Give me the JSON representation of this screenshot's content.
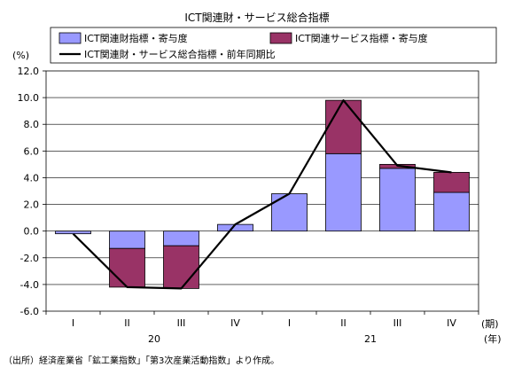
{
  "chart_data": {
    "type": "bar",
    "title": "ICT関連財・サービス総合指標",
    "y_unit_label": "(%)",
    "x_period_unit": "(期)",
    "x_year_unit": "(年)",
    "categories": [
      "I",
      "II",
      "III",
      "IV",
      "I",
      "II",
      "III",
      "IV"
    ],
    "years": [
      {
        "label": "20",
        "span": [
          0,
          3
        ]
      },
      {
        "label": "21",
        "span": [
          4,
          7
        ]
      }
    ],
    "ylim": [
      -6.0,
      12.0
    ],
    "yticks": [
      -6.0,
      -4.0,
      -2.0,
      0.0,
      2.0,
      4.0,
      6.0,
      8.0,
      10.0,
      12.0
    ],
    "ytick_labels": [
      "-6.0",
      "-4.0",
      "-2.0",
      "0.0",
      "2.0",
      "4.0",
      "6.0",
      "8.0",
      "10.0",
      "12.0"
    ],
    "stacked": true,
    "grid": "horizontal",
    "legend_placement": "top",
    "series": [
      {
        "name": "ICT関連財指標・寄与度",
        "kind": "bar",
        "color": "#9999ff",
        "values": [
          -0.2,
          -1.3,
          -1.1,
          0.5,
          2.8,
          5.8,
          4.7,
          2.9
        ]
      },
      {
        "name": "ICT関連サービス指標・寄与度",
        "kind": "bar",
        "color": "#993366",
        "values": [
          0.0,
          -2.9,
          -3.2,
          0.0,
          0.0,
          4.0,
          0.3,
          1.5
        ]
      },
      {
        "name": "ICT関連財・サービス総合指標・前年同期比",
        "kind": "line",
        "color": "#000000",
        "values": [
          -0.2,
          -4.2,
          -4.3,
          0.5,
          2.8,
          9.8,
          4.9,
          4.4
        ]
      }
    ]
  },
  "source_note": "（出所）経済産業省「鉱工業指数」「第3次産業活動指数」より作成。"
}
